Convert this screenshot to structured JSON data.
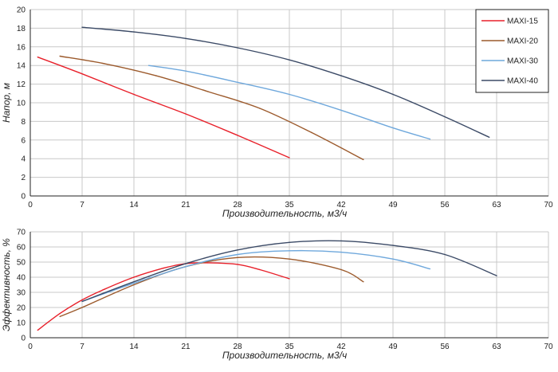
{
  "colors": {
    "MAXI-15": "#e8202a",
    "MAXI-20": "#9c5a2c",
    "MAXI-30": "#6fa8dc",
    "MAXI-40": "#3b4a66",
    "grid": "#c8c8c8",
    "axis": "#222222"
  },
  "chart_data": [
    {
      "type": "line",
      "xlabel": "Производительность, м3/ч",
      "ylabel": "Напор, м",
      "xlim": [
        0,
        70
      ],
      "ylim": [
        0,
        20
      ],
      "xticks": [
        "0",
        "7",
        "14",
        "21",
        "28",
        "35",
        "42",
        "49",
        "56",
        "63",
        "70"
      ],
      "yticks": [
        "0",
        "2",
        "4",
        "6",
        "8",
        "10",
        "12",
        "14",
        "16",
        "18",
        "20"
      ],
      "grid": true,
      "legend": "top-right",
      "legend_entries": [
        "MAXI-15",
        "MAXI-20",
        "MAXI-30",
        "MAXI-40"
      ],
      "series": [
        {
          "name": "MAXI-15",
          "x": [
            1,
            7,
            14,
            21,
            28,
            35
          ],
          "y": [
            14.9,
            13.1,
            10.9,
            8.8,
            6.5,
            4.1
          ]
        },
        {
          "name": "MAXI-20",
          "x": [
            4,
            10,
            17,
            24,
            31,
            38,
            45
          ],
          "y": [
            15.0,
            14.2,
            12.9,
            11.2,
            9.4,
            6.8,
            3.9
          ]
        },
        {
          "name": "MAXI-30",
          "x": [
            16,
            21,
            28,
            35,
            42,
            49,
            54
          ],
          "y": [
            14.0,
            13.4,
            12.2,
            10.9,
            9.2,
            7.3,
            6.1
          ]
        },
        {
          "name": "MAXI-40",
          "x": [
            7,
            14,
            21,
            28,
            35,
            42,
            49,
            56,
            62
          ],
          "y": [
            18.1,
            17.6,
            16.9,
            15.9,
            14.6,
            12.9,
            10.9,
            8.5,
            6.3
          ]
        }
      ]
    },
    {
      "type": "line",
      "xlabel": "Производительность, м3/ч",
      "ylabel": "Эффективность, %",
      "xlim": [
        0,
        70
      ],
      "ylim": [
        0,
        70
      ],
      "xticks": [
        "0",
        "7",
        "14",
        "21",
        "28",
        "35",
        "42",
        "49",
        "56",
        "63",
        "70"
      ],
      "yticks": [
        "0",
        "10",
        "20",
        "30",
        "40",
        "50",
        "60",
        "70"
      ],
      "grid": true,
      "series": [
        {
          "name": "MAXI-15",
          "x": [
            1,
            4,
            7,
            10,
            14,
            18,
            21,
            24,
            28,
            31,
            35
          ],
          "y": [
            5,
            16,
            25,
            32,
            40,
            46,
            49,
            49.5,
            48.5,
            45,
            39
          ]
        },
        {
          "name": "MAXI-20",
          "x": [
            4,
            7,
            14,
            21,
            28,
            35,
            42,
            45
          ],
          "y": [
            14,
            20,
            35,
            47,
            53,
            52,
            45,
            37
          ]
        },
        {
          "name": "MAXI-30",
          "x": [
            7,
            14,
            21,
            28,
            35,
            42,
            49,
            54
          ],
          "y": [
            24,
            36,
            47,
            55,
            57.5,
            56.5,
            52,
            45.5
          ]
        },
        {
          "name": "MAXI-40",
          "x": [
            7,
            14,
            21,
            28,
            35,
            42,
            49,
            56,
            63
          ],
          "y": [
            24,
            37,
            49,
            58,
            63,
            64,
            61,
            55,
            41
          ]
        }
      ]
    }
  ]
}
